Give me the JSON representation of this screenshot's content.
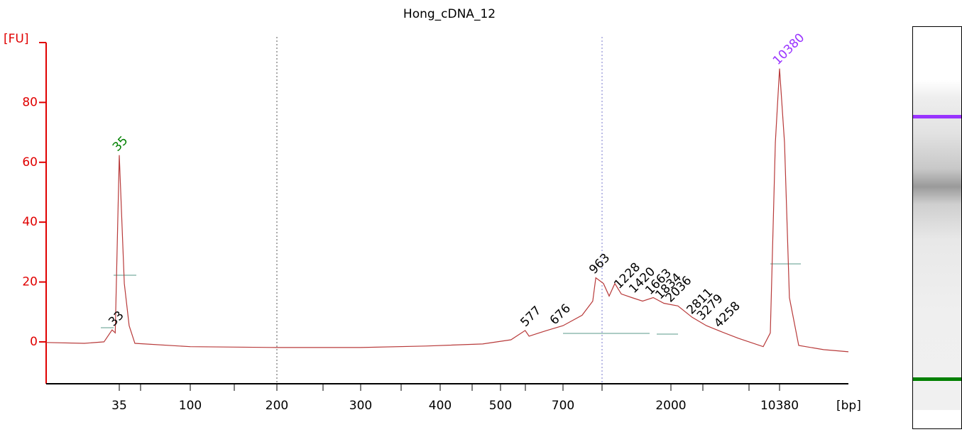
{
  "chart_data": {
    "type": "line",
    "title": "Hong_cDNA_12",
    "x_label": "[bp]",
    "y_label": "[FU]",
    "color": "#b83a3a",
    "axis_color": "#e00000",
    "xscale": "log",
    "xlim": [
      12,
      29500
    ],
    "xticks": [
      35,
      100,
      200,
      300,
      400,
      500,
      700,
      2000,
      10380
    ],
    "ylim": [
      -14,
      100
    ],
    "yticks": [
      0,
      20,
      40,
      60,
      80
    ],
    "x": [
      12,
      21,
      28,
      31.5,
      33,
      35,
      37.7,
      40.5,
      44.1,
      100,
      200,
      300,
      380,
      468,
      529,
      571,
      583,
      641,
      700,
      843,
      935,
      963,
      1038,
      1097,
      1159,
      1234,
      1367,
      1518,
      1684,
      1866,
      2226,
      2760,
      3426,
      4250,
      5565,
      8100,
      9020,
      9740,
      10380,
      11190,
      12060,
      13880,
      20230,
      29500
    ],
    "values": [
      -0.2,
      -0.5,
      0,
      4,
      3,
      62.4,
      19.5,
      5.4,
      -0.5,
      -1.6,
      -1.9,
      -1.9,
      -1.4,
      -0.7,
      0.7,
      3.8,
      1.9,
      3.8,
      5.4,
      8.9,
      13.6,
      21.4,
      19.5,
      15.3,
      19.5,
      16,
      14.8,
      13.6,
      14.8,
      12.9,
      12,
      8.2,
      5.4,
      3.5,
      1.2,
      -1.6,
      3,
      66.6,
      91.3,
      66.6,
      14.8,
      -1.2,
      -2.6,
      -3.3
    ],
    "peaks": [
      {
        "size": 33,
        "height": 4,
        "color": "#000000"
      },
      {
        "size": 35,
        "height": 62.4,
        "color": "#008000"
      },
      {
        "size": 577,
        "height": 3.8,
        "color": "#000000"
      },
      {
        "size": 676,
        "height": 4.5,
        "color": "#000000"
      },
      {
        "size": 963,
        "height": 21.4,
        "color": "#000000"
      },
      {
        "size": 1228,
        "height": 16.5,
        "color": "#000000"
      },
      {
        "size": 1420,
        "height": 15,
        "color": "#000000"
      },
      {
        "size": 1663,
        "height": 14.5,
        "color": "#000000"
      },
      {
        "size": 1834,
        "height": 13,
        "color": "#000000"
      },
      {
        "size": 2036,
        "height": 12,
        "color": "#000000"
      },
      {
        "size": 2811,
        "height": 8,
        "color": "#000000"
      },
      {
        "size": 3279,
        "height": 6,
        "color": "#000000"
      },
      {
        "size": 4258,
        "height": 3.5,
        "color": "#000000"
      },
      {
        "size": 10380,
        "height": 91.3,
        "color": "#9933ff"
      }
    ]
  }
}
